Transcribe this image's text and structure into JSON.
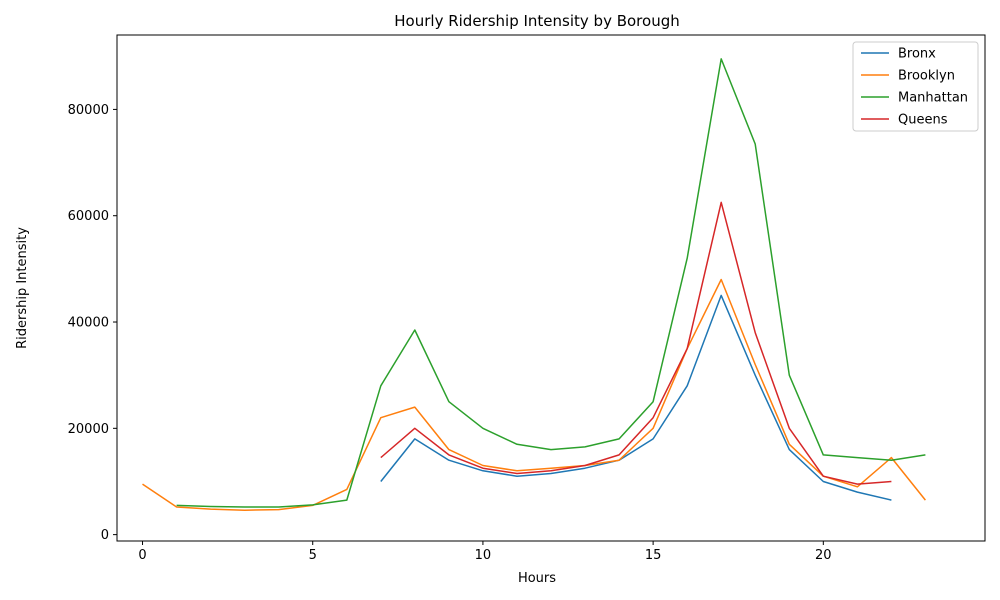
{
  "chart_data": {
    "type": "line",
    "title": "Hourly Ridership Intensity by Borough",
    "xlabel": "Hours",
    "ylabel": "Ridership Intensity",
    "xlim": [
      -0.75,
      24.75
    ],
    "ylim": [
      -1200,
      94000
    ],
    "xticks": [
      0,
      5,
      10,
      15,
      20
    ],
    "yticks": [
      0,
      20000,
      40000,
      60000,
      80000
    ],
    "grid": false,
    "legend_position": "top-right",
    "series": [
      {
        "name": "Bronx",
        "color": "#1f77b4",
        "x": [
          7,
          8,
          9,
          10,
          11,
          12,
          13,
          14,
          15,
          16,
          17,
          18,
          19,
          20,
          21,
          22
        ],
        "y": [
          10000,
          18000,
          14000,
          12000,
          11000,
          11500,
          12500,
          14000,
          18000,
          28000,
          45000,
          30000,
          16000,
          10000,
          8000,
          6500
        ]
      },
      {
        "name": "Brooklyn",
        "color": "#ff7f0e",
        "x": [
          0,
          1,
          2,
          3,
          4,
          5,
          6,
          7,
          8,
          9,
          10,
          11,
          12,
          13,
          14,
          15,
          16,
          17,
          18,
          19,
          20,
          21,
          22,
          23
        ],
        "y": [
          9500,
          5200,
          4800,
          4600,
          4700,
          5500,
          8500,
          22000,
          24000,
          16000,
          13000,
          12000,
          12500,
          13000,
          14000,
          20000,
          35000,
          48000,
          32000,
          17000,
          11000,
          9000,
          14500,
          6500
        ]
      },
      {
        "name": "Manhattan",
        "color": "#2ca02c",
        "x": [
          1,
          2,
          3,
          4,
          5,
          6,
          7,
          8,
          9,
          10,
          11,
          12,
          13,
          14,
          15,
          16,
          17,
          18,
          19,
          20,
          21,
          22,
          23
        ],
        "y": [
          5500,
          5300,
          5200,
          5200,
          5600,
          6500,
          28000,
          38500,
          25000,
          20000,
          17000,
          16000,
          16500,
          18000,
          25000,
          52000,
          89500,
          73500,
          30000,
          15000,
          14500,
          14000,
          15000
        ]
      },
      {
        "name": "Queens",
        "color": "#d62728",
        "x": [
          7,
          8,
          9,
          10,
          11,
          12,
          13,
          14,
          15,
          16,
          17,
          18,
          19,
          20,
          21,
          22
        ],
        "y": [
          14500,
          20000,
          15000,
          12500,
          11500,
          12000,
          13000,
          15000,
          22000,
          35000,
          62500,
          38000,
          20000,
          11000,
          9500,
          10000
        ]
      }
    ]
  }
}
